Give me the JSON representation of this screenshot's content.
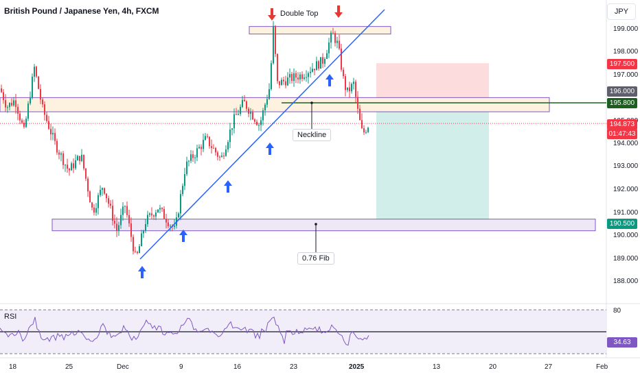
{
  "title": "British Pound / Japanese Yen, 4h, FXCM",
  "currency": "JPY",
  "price_labels": {
    "tp_red": "197.500",
    "level_196": "196.000",
    "level_1958": "195.800",
    "current": "194.873",
    "countdown": "01:47:43",
    "fib_level": "190.500",
    "rsi_value": "34.63"
  },
  "annotations": {
    "double_top": "Double Top",
    "neckline": "Neckline",
    "fib": "0.76 Fib"
  },
  "rsi_title": "RSI",
  "colors": {
    "up": "#089981",
    "down": "#f23645",
    "trendline": "#2962ff",
    "zone_border": "#7e57c2",
    "zone_fill": "#fdf2e0",
    "fib_fill": "#ede7f6",
    "neckline": "#1b5e20",
    "stop_fill": "#fdd8da",
    "target_fill": "#cdece9",
    "arrow_blue": "#2962ff",
    "arrow_red": "#e53935"
  },
  "chart_data": {
    "type": "candlestick",
    "title": "British Pound / Japanese Yen, 4h, FXCM",
    "y_axis": {
      "ticks": [
        "199.000",
        "198.000",
        "197.000",
        "195.000",
        "194.000",
        "193.000",
        "192.000",
        "191.000",
        "190.000",
        "189.000",
        "188.000"
      ],
      "range": [
        187.5,
        199.6
      ]
    },
    "x_axis": {
      "ticks": [
        "18",
        "25",
        "Dec",
        "9",
        "16",
        "23",
        "2025",
        "13",
        "20",
        "27",
        "Feb"
      ]
    },
    "levels": {
      "resistance_zone": [
        195.8,
        196.0
      ],
      "double_top_zone": [
        198.9,
        199.1
      ],
      "fib_zone": [
        190.3,
        190.7
      ],
      "neckline": 195.8,
      "stop": 197.5,
      "entry": 195.8,
      "target": 190.5,
      "current": 194.873
    },
    "rsi": {
      "levels": [
        80.0,
        50.0,
        20.0
      ],
      "value": 34.63
    }
  }
}
